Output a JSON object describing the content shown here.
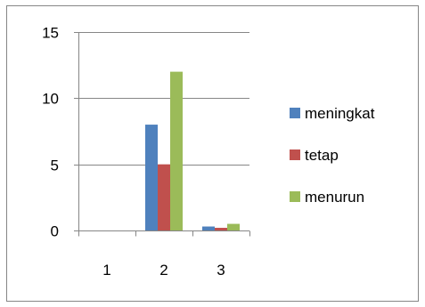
{
  "chart_data": {
    "type": "bar",
    "categories": [
      "1",
      "2",
      "3"
    ],
    "series": [
      {
        "name": "meningkat",
        "values": [
          0,
          8,
          0.3
        ],
        "color": "#4F81BD"
      },
      {
        "name": "tetap",
        "values": [
          0,
          5,
          0.2
        ],
        "color": "#C0504D"
      },
      {
        "name": "menurun",
        "values": [
          0,
          12,
          0.5
        ],
        "color": "#9BBB59"
      }
    ],
    "title": "",
    "xlabel": "",
    "ylabel": "",
    "ylim": [
      0,
      15
    ],
    "yticks": [
      "0",
      "5",
      "10",
      "15"
    ],
    "grid": "horizontal",
    "legend_position": "right"
  }
}
